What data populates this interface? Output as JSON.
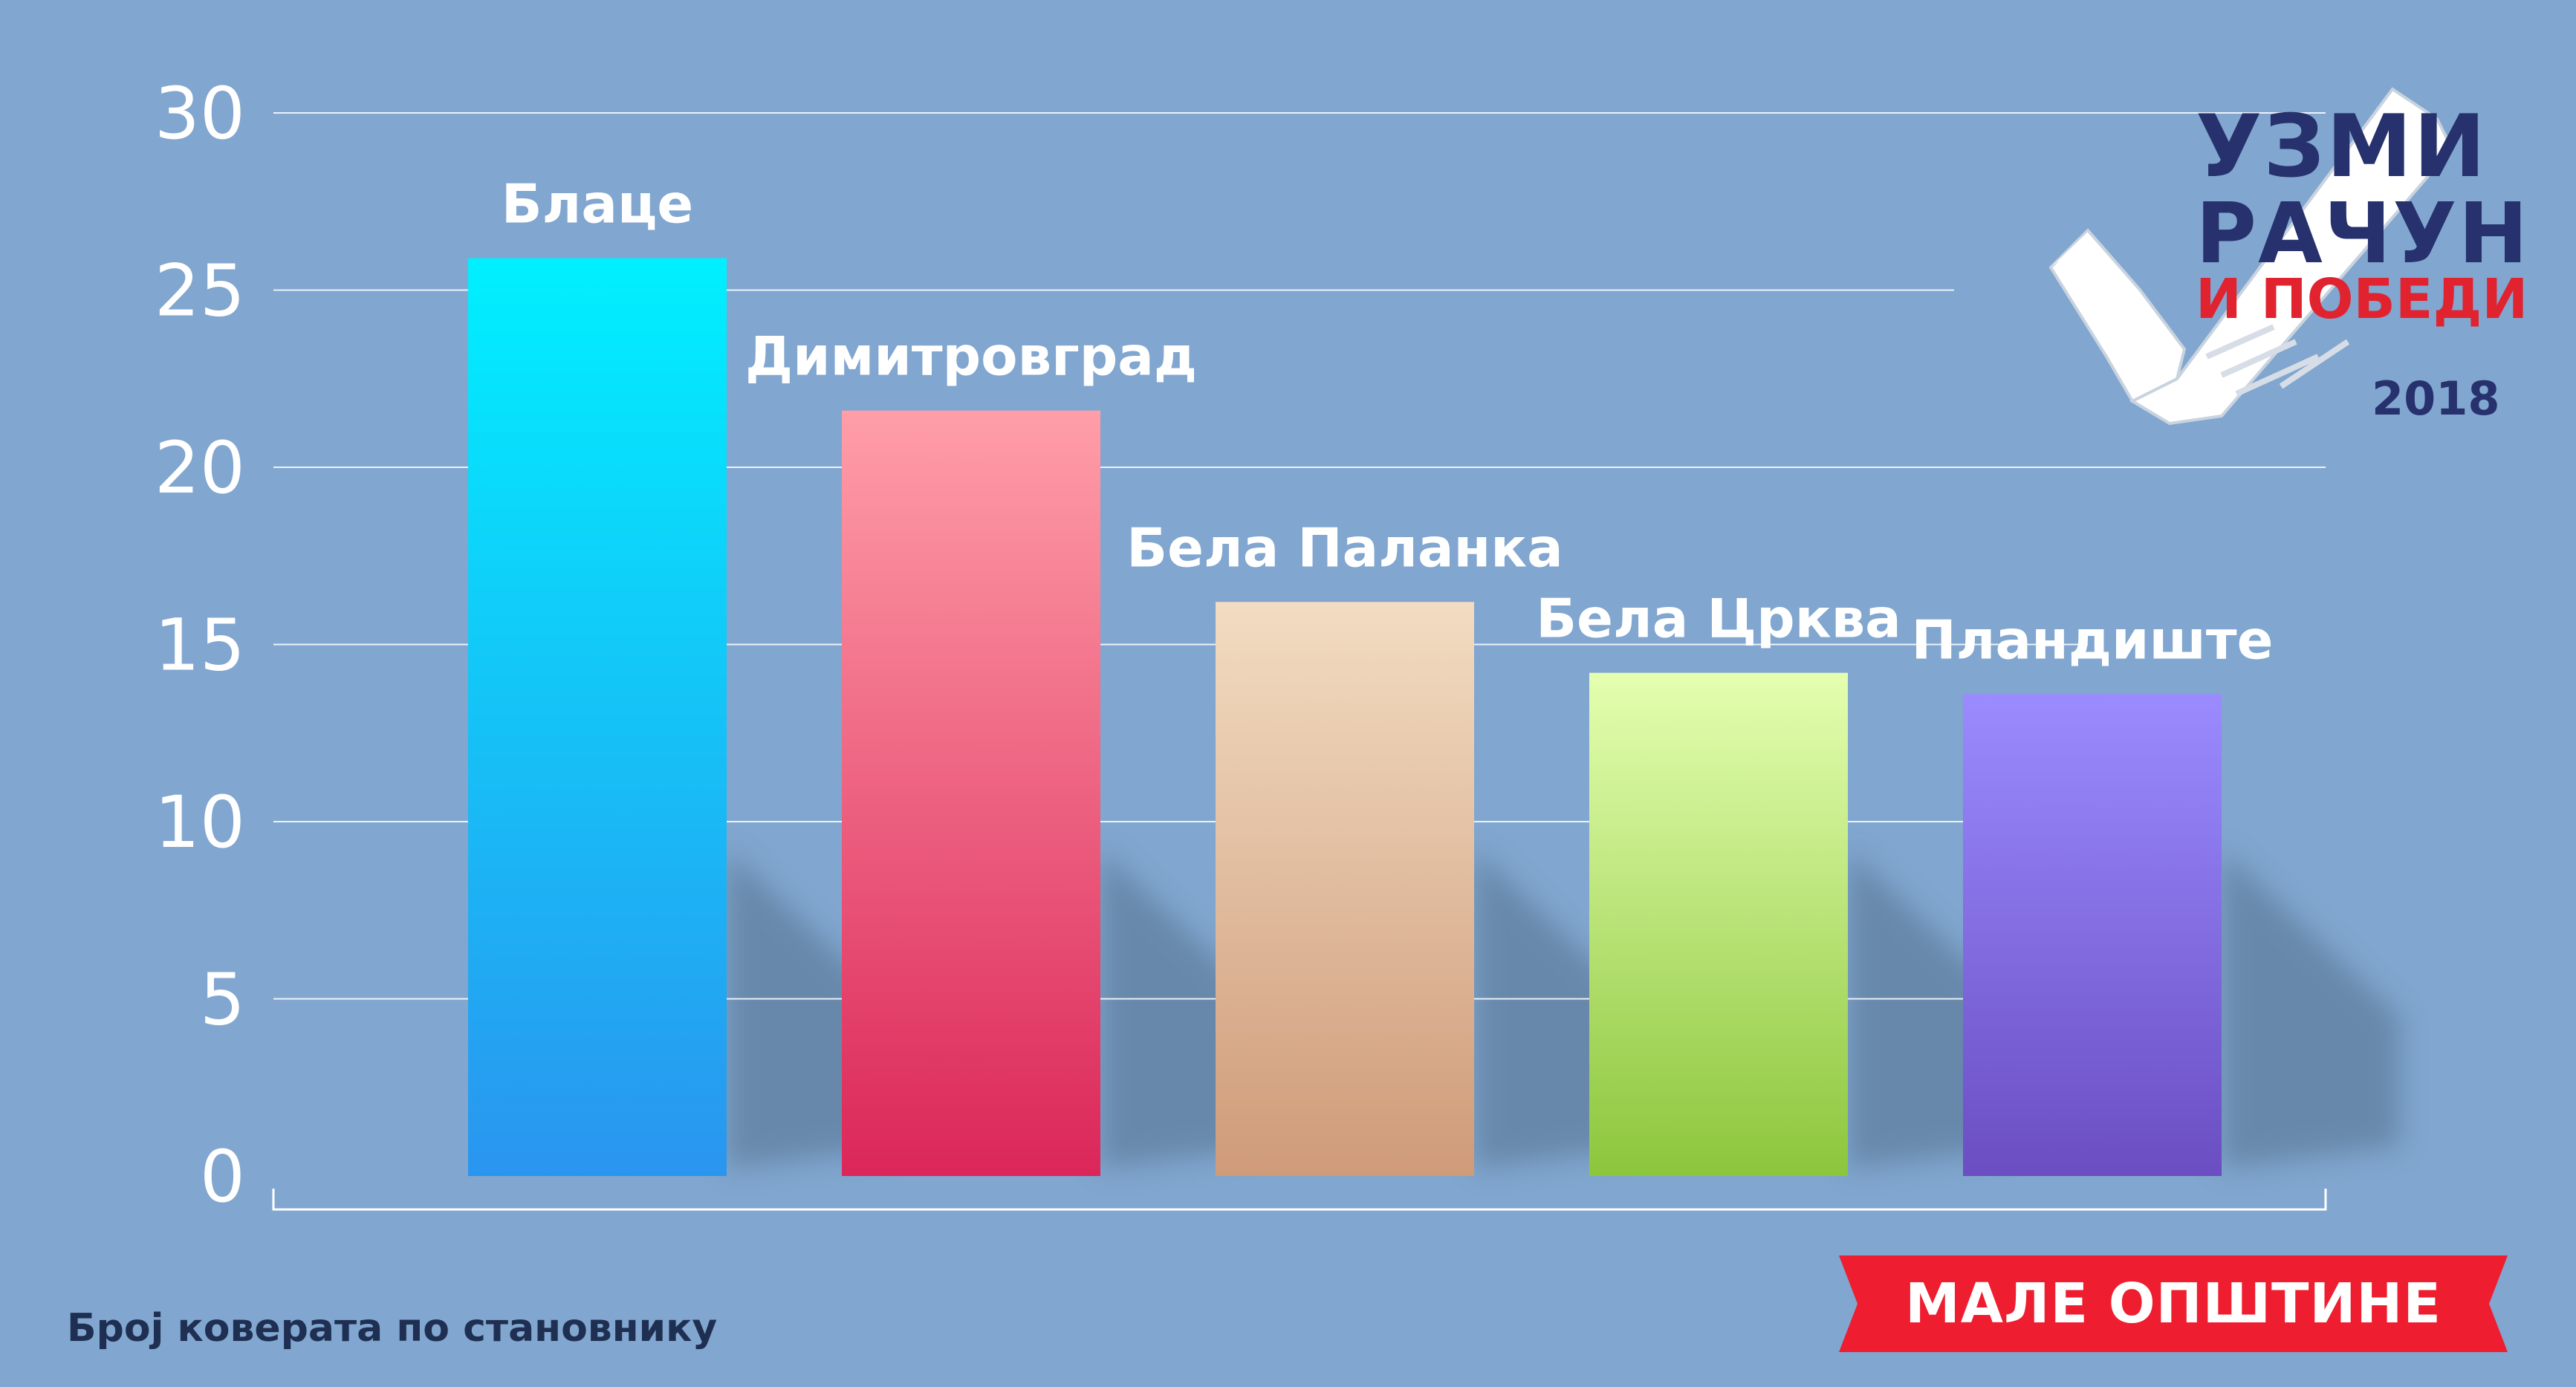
{
  "chart_data": {
    "type": "bar",
    "categories": [
      "Блаце",
      "Димитровград",
      "Бела Паланка",
      "Бела Црква",
      "Пландиште"
    ],
    "values": [
      25.9,
      21.6,
      16.2,
      14.2,
      13.6
    ],
    "ylim": [
      0,
      30
    ],
    "yticks": [
      0,
      5,
      10,
      15,
      20,
      25,
      30
    ],
    "grid": true,
    "xlabel": "",
    "ylabel": "",
    "bar_gradients": [
      [
        "#00f0ff",
        "#2a95ef"
      ],
      [
        "#ff9ea8",
        "#db2659"
      ],
      [
        "#f2dcc2",
        "#cf9b79"
      ],
      [
        "#e4ffb0",
        "#8cc63c"
      ],
      [
        "#9a8bff",
        "#6a4ec2"
      ]
    ]
  },
  "footnote": "Број коверата по становнику",
  "ribbon": {
    "label": "МАЛЕ ОПШТИНЕ",
    "color": "#ee1d2f"
  },
  "logo": {
    "line1": "УЗМИ",
    "line2": "РАЧУН",
    "line3": "И ПОБЕДИ",
    "year": "2018"
  },
  "colors": {
    "background": "#81a6cf",
    "gridline": "#ffffff",
    "shadow": "#5f7f9f",
    "logo_text": "#26316d",
    "logo_accent": "#e0232f"
  }
}
